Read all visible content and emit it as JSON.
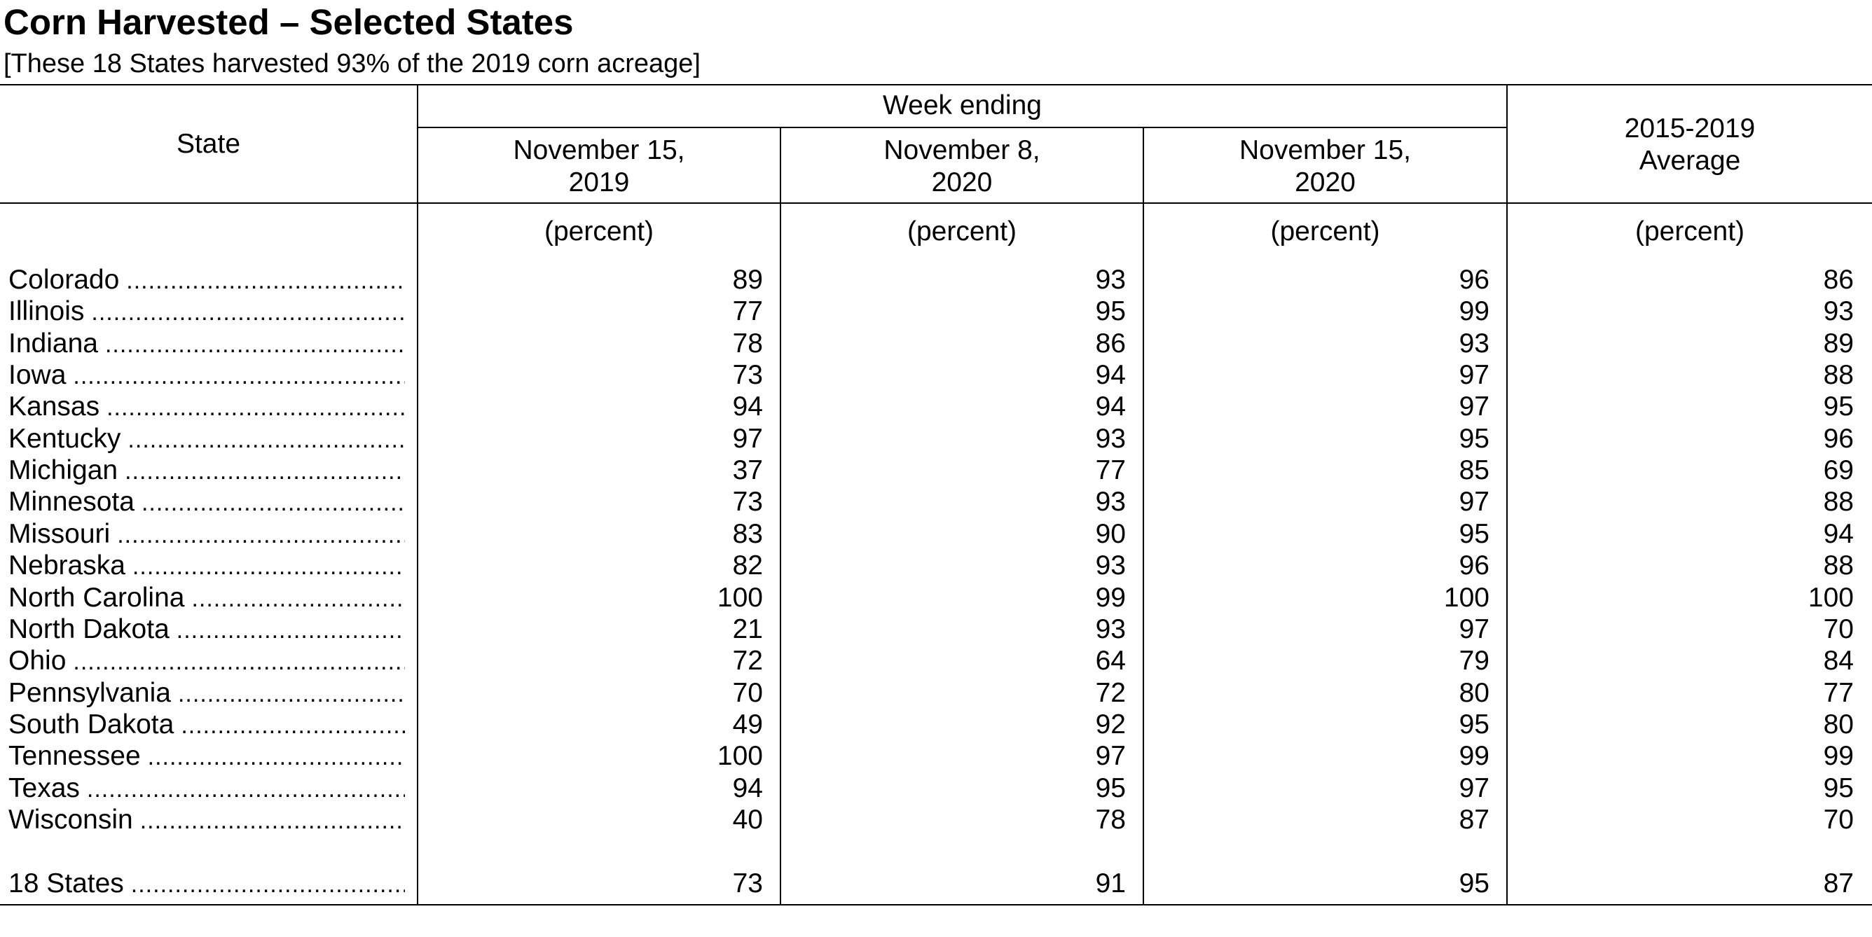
{
  "title": "Corn Harvested – Selected States",
  "subtitle": "[These 18 States harvested 93% of the 2019 corn acreage]",
  "header": {
    "state": "State",
    "week_ending": "Week ending",
    "col1_line1": "November 15,",
    "col1_line2": "2019",
    "col2_line1": "November 8,",
    "col2_line2": "2020",
    "col3_line1": "November 15,",
    "col3_line2": "2020",
    "col4_line1": "2015-2019",
    "col4_line2": "Average",
    "unit": "(percent)"
  },
  "leader": "..........................................................................................",
  "rows": [
    {
      "state": "Colorado",
      "nov15_2019": "89",
      "nov8_2020": "93",
      "nov15_2020": "96",
      "avg": "86"
    },
    {
      "state": "Illinois",
      "nov15_2019": "77",
      "nov8_2020": "95",
      "nov15_2020": "99",
      "avg": "93"
    },
    {
      "state": "Indiana",
      "nov15_2019": "78",
      "nov8_2020": "86",
      "nov15_2020": "93",
      "avg": "89"
    },
    {
      "state": "Iowa",
      "nov15_2019": "73",
      "nov8_2020": "94",
      "nov15_2020": "97",
      "avg": "88"
    },
    {
      "state": "Kansas",
      "nov15_2019": "94",
      "nov8_2020": "94",
      "nov15_2020": "97",
      "avg": "95"
    },
    {
      "state": "Kentucky",
      "nov15_2019": "97",
      "nov8_2020": "93",
      "nov15_2020": "95",
      "avg": "96"
    },
    {
      "state": "Michigan",
      "nov15_2019": "37",
      "nov8_2020": "77",
      "nov15_2020": "85",
      "avg": "69"
    },
    {
      "state": "Minnesota",
      "nov15_2019": "73",
      "nov8_2020": "93",
      "nov15_2020": "97",
      "avg": "88"
    },
    {
      "state": "Missouri",
      "nov15_2019": "83",
      "nov8_2020": "90",
      "nov15_2020": "95",
      "avg": "94"
    },
    {
      "state": "Nebraska",
      "nov15_2019": "82",
      "nov8_2020": "93",
      "nov15_2020": "96",
      "avg": "88"
    },
    {
      "state": "North Carolina",
      "nov15_2019": "100",
      "nov8_2020": "99",
      "nov15_2020": "100",
      "avg": "100"
    },
    {
      "state": "North Dakota",
      "nov15_2019": "21",
      "nov8_2020": "93",
      "nov15_2020": "97",
      "avg": "70"
    },
    {
      "state": "Ohio",
      "nov15_2019": "72",
      "nov8_2020": "64",
      "nov15_2020": "79",
      "avg": "84"
    },
    {
      "state": "Pennsylvania",
      "nov15_2019": "70",
      "nov8_2020": "72",
      "nov15_2020": "80",
      "avg": "77"
    },
    {
      "state": "South Dakota",
      "nov15_2019": "49",
      "nov8_2020": "92",
      "nov15_2020": "95",
      "avg": "80"
    },
    {
      "state": "Tennessee",
      "nov15_2019": "100",
      "nov8_2020": "97",
      "nov15_2020": "99",
      "avg": "99"
    },
    {
      "state": "Texas",
      "nov15_2019": "94",
      "nov8_2020": "95",
      "nov15_2020": "97",
      "avg": "95"
    },
    {
      "state": "Wisconsin",
      "nov15_2019": "40",
      "nov8_2020": "78",
      "nov15_2020": "87",
      "avg": "70"
    }
  ],
  "total": {
    "state": "18 States",
    "nov15_2019": "73",
    "nov8_2020": "91",
    "nov15_2020": "95",
    "avg": "87"
  }
}
